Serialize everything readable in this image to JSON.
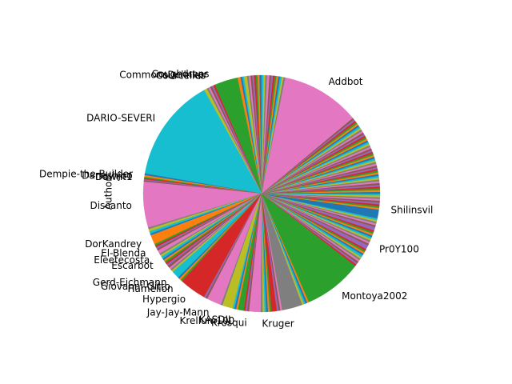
{
  "chart_data": {
    "type": "pie",
    "ylabel": "Author",
    "start_angle_deg": 90,
    "direction": "counterclockwise",
    "slices": [
      {
        "label": "",
        "value": 0.4,
        "color": "#1f77b4"
      },
      {
        "label": "",
        "value": 0.3,
        "color": "#ff7f0e"
      },
      {
        "label": "",
        "value": 0.3,
        "color": "#2ca02c"
      },
      {
        "label": "",
        "value": 0.3,
        "color": "#d62728"
      },
      {
        "label": "",
        "value": 0.3,
        "color": "#9467bd"
      },
      {
        "label": "",
        "value": 0.3,
        "color": "#8c564b"
      },
      {
        "label": "",
        "value": 0.3,
        "color": "#e377c2"
      },
      {
        "label": "",
        "value": 0.3,
        "color": "#7f7f7f"
      },
      {
        "label": "",
        "value": 0.5,
        "color": "#bcbd22"
      },
      {
        "label": "",
        "value": 0.3,
        "color": "#17becf"
      },
      {
        "label": "",
        "value": 0.3,
        "color": "#1f77b4"
      },
      {
        "label": "",
        "value": 0.5,
        "color": "#ff7f0e"
      },
      {
        "label": "",
        "value": 4.0,
        "color": "#2ca02c"
      },
      {
        "label": "Coughdrops",
        "value": 0.3,
        "color": "#d62728"
      },
      {
        "label": "CommonsDelinker",
        "value": 0.3,
        "color": "#9467bd"
      },
      {
        "label": "Courcelles",
        "value": 0.3,
        "color": "#8c564b"
      },
      {
        "label": "",
        "value": 0.3,
        "color": "#e377c2"
      },
      {
        "label": "",
        "value": 0.3,
        "color": "#7f7f7f"
      },
      {
        "label": "",
        "value": 0.5,
        "color": "#bcbd22"
      },
      {
        "label": "DARIO-SEVERI",
        "value": 17.8,
        "color": "#17becf"
      },
      {
        "label": "",
        "value": 0.3,
        "color": "#1f77b4"
      },
      {
        "label": "Dempie-the-Builder",
        "value": 0.3,
        "color": "#ff7f0e"
      },
      {
        "label": "Daneshjoo",
        "value": 0.2,
        "color": "#2ca02c"
      },
      {
        "label": "Dawnt1",
        "value": 0.2,
        "color": "#d62728"
      },
      {
        "label": "",
        "value": 0.2,
        "color": "#9467bd"
      },
      {
        "label": "",
        "value": 0.2,
        "color": "#8c564b"
      },
      {
        "label": "Discanto",
        "value": 7.8,
        "color": "#e377c2"
      },
      {
        "label": "",
        "value": 0.3,
        "color": "#7f7f7f"
      },
      {
        "label": "",
        "value": 0.4,
        "color": "#bcbd22"
      },
      {
        "label": "",
        "value": 0.4,
        "color": "#17becf"
      },
      {
        "label": "",
        "value": 0.3,
        "color": "#1f77b4"
      },
      {
        "label": "DorKandrey",
        "value": 1.6,
        "color": "#ff7f0e"
      },
      {
        "label": "",
        "value": 0.3,
        "color": "#2ca02c"
      },
      {
        "label": "",
        "value": 0.3,
        "color": "#d62728"
      },
      {
        "label": "El-Blenda",
        "value": 0.3,
        "color": "#9467bd"
      },
      {
        "label": "",
        "value": 0.3,
        "color": "#8c564b"
      },
      {
        "label": "",
        "value": 0.6,
        "color": "#e377c2"
      },
      {
        "label": "Eleetecosta",
        "value": 0.3,
        "color": "#7f7f7f"
      },
      {
        "label": "",
        "value": 0.3,
        "color": "#bcbd22"
      },
      {
        "label": "",
        "value": 0.4,
        "color": "#17becf"
      },
      {
        "label": "Escarbot",
        "value": 0.3,
        "color": "#1f77b4"
      },
      {
        "label": "",
        "value": 0.3,
        "color": "#ff7f0e"
      },
      {
        "label": "",
        "value": 0.3,
        "color": "#2ca02c"
      },
      {
        "label": "",
        "value": 0.3,
        "color": "#d62728"
      },
      {
        "label": "",
        "value": 0.3,
        "color": "#9467bd"
      },
      {
        "label": "",
        "value": 0.4,
        "color": "#8c564b"
      },
      {
        "label": "",
        "value": 0.3,
        "color": "#e377c2"
      },
      {
        "label": "",
        "value": 0.3,
        "color": "#7f7f7f"
      },
      {
        "label": "",
        "value": 0.3,
        "color": "#bcbd22"
      },
      {
        "label": "Gerd-Eichmann",
        "value": 1.3,
        "color": "#17becf"
      },
      {
        "label": "Giovanni-Gitto",
        "value": 0.3,
        "color": "#1f77b4"
      },
      {
        "label": "",
        "value": 0.3,
        "color": "#ff7f0e"
      },
      {
        "label": "Hamelion",
        "value": 0.3,
        "color": "#2ca02c"
      },
      {
        "label": "Hypergio",
        "value": 4.6,
        "color": "#d62728"
      },
      {
        "label": "",
        "value": 0.3,
        "color": "#9467bd"
      },
      {
        "label": "",
        "value": 0.3,
        "color": "#8c564b"
      },
      {
        "label": "Jay-Jay-Mann",
        "value": 2.5,
        "color": "#e377c2"
      },
      {
        "label": "",
        "value": 0.3,
        "color": "#7f7f7f"
      },
      {
        "label": "",
        "value": 1.8,
        "color": "#bcbd22"
      },
      {
        "label": "KASDIJ",
        "value": 0.3,
        "color": "#17becf"
      },
      {
        "label": "",
        "value": 0.3,
        "color": "#1f77b4"
      },
      {
        "label": "Krellum100",
        "value": 0.3,
        "color": "#ff7f0e"
      },
      {
        "label": "",
        "value": 1.0,
        "color": "#2ca02c"
      },
      {
        "label": "",
        "value": 0.3,
        "color": "#d62728"
      },
      {
        "label": "",
        "value": 0.3,
        "color": "#9467bd"
      },
      {
        "label": "Krosqui",
        "value": 0.3,
        "color": "#8c564b"
      },
      {
        "label": "",
        "value": 2.0,
        "color": "#e377c2"
      },
      {
        "label": "Kruger",
        "value": 0.3,
        "color": "#7f7f7f"
      },
      {
        "label": "",
        "value": 0.3,
        "color": "#bcbd22"
      },
      {
        "label": "",
        "value": 0.3,
        "color": "#17becf"
      },
      {
        "label": "",
        "value": 0.3,
        "color": "#1f77b4"
      },
      {
        "label": "",
        "value": 0.3,
        "color": "#ff7f0e"
      },
      {
        "label": "",
        "value": 0.3,
        "color": "#2ca02c"
      },
      {
        "label": "",
        "value": 0.9,
        "color": "#d62728"
      },
      {
        "label": "",
        "value": 0.3,
        "color": "#9467bd"
      },
      {
        "label": "",
        "value": 0.3,
        "color": "#8c564b"
      },
      {
        "label": "",
        "value": 0.3,
        "color": "#e377c2"
      },
      {
        "label": "",
        "value": 3.5,
        "color": "#7f7f7f"
      },
      {
        "label": "",
        "value": 0.3,
        "color": "#bcbd22"
      },
      {
        "label": "",
        "value": 0.3,
        "color": "#17becf"
      },
      {
        "label": "",
        "value": 0.3,
        "color": "#1f77b4"
      },
      {
        "label": "",
        "value": 0.3,
        "color": "#ff7f0e"
      },
      {
        "label": "Montoya2002",
        "value": 10.0,
        "color": "#2ca02c"
      },
      {
        "label": "",
        "value": 0.3,
        "color": "#d62728"
      },
      {
        "label": "",
        "value": 0.3,
        "color": "#9467bd"
      },
      {
        "label": "",
        "value": 0.3,
        "color": "#8c564b"
      },
      {
        "label": "",
        "value": 0.3,
        "color": "#e377c2"
      },
      {
        "label": "",
        "value": 0.3,
        "color": "#7f7f7f"
      },
      {
        "label": "",
        "value": 0.3,
        "color": "#bcbd22"
      },
      {
        "label": "",
        "value": 0.4,
        "color": "#17becf"
      },
      {
        "label": "",
        "value": 0.3,
        "color": "#1f77b4"
      },
      {
        "label": "",
        "value": 0.3,
        "color": "#ff7f0e"
      },
      {
        "label": "",
        "value": 0.3,
        "color": "#2ca02c"
      },
      {
        "label": "",
        "value": 0.3,
        "color": "#d62728"
      },
      {
        "label": "",
        "value": 0.7,
        "color": "#9467bd"
      },
      {
        "label": "Pr0Y100",
        "value": 0.3,
        "color": "#8c564b"
      },
      {
        "label": "",
        "value": 0.3,
        "color": "#e377c2"
      },
      {
        "label": "",
        "value": 0.3,
        "color": "#7f7f7f"
      },
      {
        "label": "",
        "value": 0.3,
        "color": "#bcbd22"
      },
      {
        "label": "",
        "value": 0.3,
        "color": "#17becf"
      },
      {
        "label": "",
        "value": 0.3,
        "color": "#1f77b4"
      },
      {
        "label": "",
        "value": 0.3,
        "color": "#ff7f0e"
      },
      {
        "label": "",
        "value": 0.3,
        "color": "#2ca02c"
      },
      {
        "label": "",
        "value": 0.3,
        "color": "#d62728"
      },
      {
        "label": "",
        "value": 0.6,
        "color": "#9467bd"
      },
      {
        "label": "",
        "value": 0.3,
        "color": "#8c564b"
      },
      {
        "label": "",
        "value": 0.3,
        "color": "#e377c2"
      },
      {
        "label": "",
        "value": 0.3,
        "color": "#7f7f7f"
      },
      {
        "label": "",
        "value": 0.3,
        "color": "#bcbd22"
      },
      {
        "label": "",
        "value": 0.3,
        "color": "#17becf"
      },
      {
        "label": "",
        "value": 1.5,
        "color": "#1f77b4"
      },
      {
        "label": "Shilinsvil",
        "value": 0.3,
        "color": "#ff7f0e"
      },
      {
        "label": "",
        "value": 0.3,
        "color": "#2ca02c"
      },
      {
        "label": "",
        "value": 0.3,
        "color": "#d62728"
      },
      {
        "label": "",
        "value": 0.3,
        "color": "#9467bd"
      },
      {
        "label": "",
        "value": 0.3,
        "color": "#8c564b"
      },
      {
        "label": "",
        "value": 0.3,
        "color": "#e377c2"
      },
      {
        "label": "",
        "value": 0.3,
        "color": "#7f7f7f"
      },
      {
        "label": "",
        "value": 0.3,
        "color": "#bcbd22"
      },
      {
        "label": "",
        "value": 0.3,
        "color": "#17becf"
      },
      {
        "label": "",
        "value": 0.3,
        "color": "#1f77b4"
      },
      {
        "label": "",
        "value": 0.3,
        "color": "#ff7f0e"
      },
      {
        "label": "",
        "value": 0.3,
        "color": "#2ca02c"
      },
      {
        "label": "",
        "value": 0.3,
        "color": "#d62728"
      },
      {
        "label": "",
        "value": 0.3,
        "color": "#9467bd"
      },
      {
        "label": "",
        "value": 0.3,
        "color": "#8c564b"
      },
      {
        "label": "",
        "value": 0.3,
        "color": "#e377c2"
      },
      {
        "label": "",
        "value": 0.3,
        "color": "#7f7f7f"
      },
      {
        "label": "",
        "value": 0.3,
        "color": "#bcbd22"
      },
      {
        "label": "",
        "value": 0.3,
        "color": "#17becf"
      },
      {
        "label": "",
        "value": 0.3,
        "color": "#1f77b4"
      },
      {
        "label": "",
        "value": 0.3,
        "color": "#ff7f0e"
      },
      {
        "label": "",
        "value": 0.3,
        "color": "#2ca02c"
      },
      {
        "label": "",
        "value": 0.3,
        "color": "#d62728"
      },
      {
        "label": "",
        "value": 0.3,
        "color": "#9467bd"
      },
      {
        "label": "",
        "value": 0.3,
        "color": "#8c564b"
      },
      {
        "label": "",
        "value": 0.3,
        "color": "#e377c2"
      },
      {
        "label": "",
        "value": 0.3,
        "color": "#7f7f7f"
      },
      {
        "label": "",
        "value": 0.3,
        "color": "#bcbd22"
      },
      {
        "label": "",
        "value": 0.3,
        "color": "#17becf"
      },
      {
        "label": "",
        "value": 0.3,
        "color": "#1f77b4"
      },
      {
        "label": "",
        "value": 0.3,
        "color": "#ff7f0e"
      },
      {
        "label": "",
        "value": 0.3,
        "color": "#2ca02c"
      },
      {
        "label": "",
        "value": 0.3,
        "color": "#d62728"
      },
      {
        "label": "",
        "value": 0.3,
        "color": "#9467bd"
      },
      {
        "label": "",
        "value": 0.3,
        "color": "#8c564b"
      },
      {
        "label": "",
        "value": 0.3,
        "color": "#e377c2"
      },
      {
        "label": "",
        "value": 0.3,
        "color": "#7f7f7f"
      },
      {
        "label": "",
        "value": 0.3,
        "color": "#bcbd22"
      },
      {
        "label": "",
        "value": 0.3,
        "color": "#17becf"
      },
      {
        "label": "",
        "value": 0.3,
        "color": "#1f77b4"
      },
      {
        "label": "",
        "value": 0.3,
        "color": "#ff7f0e"
      },
      {
        "label": "",
        "value": 0.3,
        "color": "#2ca02c"
      },
      {
        "label": "",
        "value": 0.3,
        "color": "#d62728"
      },
      {
        "label": "",
        "value": 0.3,
        "color": "#9467bd"
      },
      {
        "label": "",
        "value": 0.3,
        "color": "#8c564b"
      },
      {
        "label": "",
        "value": 0.3,
        "color": "#e377c2"
      },
      {
        "label": "",
        "value": 0.3,
        "color": "#7f7f7f"
      },
      {
        "label": "",
        "value": 0.3,
        "color": "#bcbd22"
      },
      {
        "label": "",
        "value": 0.3,
        "color": "#17becf"
      },
      {
        "label": "",
        "value": 0.3,
        "color": "#1f77b4"
      },
      {
        "label": "",
        "value": 0.3,
        "color": "#ff7f0e"
      },
      {
        "label": "",
        "value": 0.3,
        "color": "#2ca02c"
      },
      {
        "label": "",
        "value": 0.3,
        "color": "#d62728"
      },
      {
        "label": "",
        "value": 0.3,
        "color": "#9467bd"
      },
      {
        "label": "",
        "value": 0.3,
        "color": "#8c564b"
      },
      {
        "label": "Addbot",
        "value": 13.5,
        "color": "#e377c2"
      },
      {
        "label": "",
        "value": 0.3,
        "color": "#7f7f7f"
      },
      {
        "label": "",
        "value": 0.3,
        "color": "#bcbd22"
      },
      {
        "label": "",
        "value": 0.3,
        "color": "#17becf"
      },
      {
        "label": "",
        "value": 0.3,
        "color": "#1f77b4"
      },
      {
        "label": "",
        "value": 0.3,
        "color": "#ff7f0e"
      },
      {
        "label": "",
        "value": 0.3,
        "color": "#2ca02c"
      },
      {
        "label": "",
        "value": 0.3,
        "color": "#d62728"
      },
      {
        "label": "",
        "value": 0.3,
        "color": "#9467bd"
      },
      {
        "label": "",
        "value": 0.3,
        "color": "#8c564b"
      },
      {
        "label": "",
        "value": 0.4,
        "color": "#e377c2"
      },
      {
        "label": "",
        "value": 0.3,
        "color": "#7f7f7f"
      },
      {
        "label": "",
        "value": 0.3,
        "color": "#bcbd22"
      },
      {
        "label": "",
        "value": 0.3,
        "color": "#17becf"
      }
    ]
  }
}
